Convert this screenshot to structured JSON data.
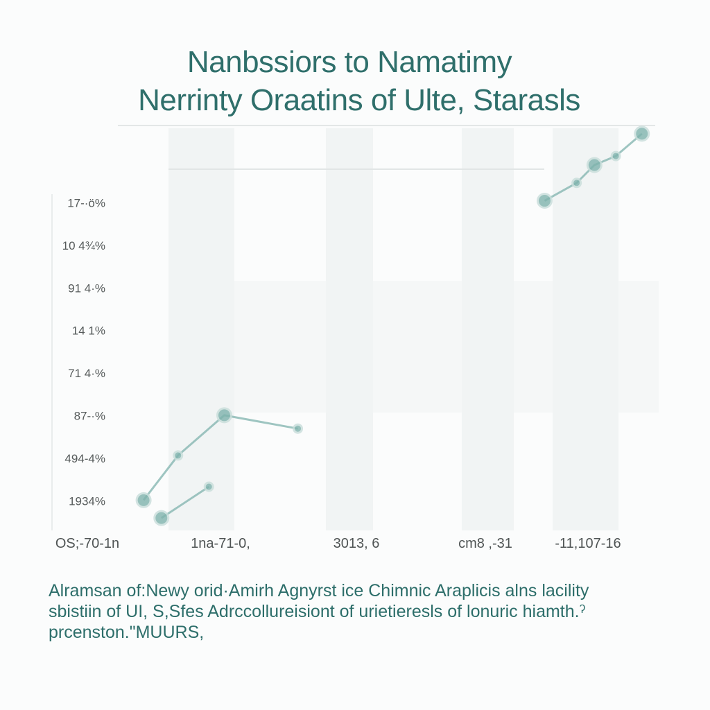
{
  "title_lines": [
    "Nanbssiors to Namatimy",
    "Nerrinty Oraatins of Ulte, Starasls"
  ],
  "caption_lines": [
    "Alramsan of:Newy orid·Amirh Agnyrst ice  Chimnic Araplicis alns lacility",
    "sbistiin of UI, S,Sfes Adrccollureisiont of urietieresls of lonuric hiamth.ˀ",
    "prcenston.ʺMUURS,"
  ],
  "colors": {
    "title": "#2f6f6b",
    "line": "#7fb3ad",
    "marker": "#7fb3ad",
    "axis_text": "#555a5a",
    "band": "#eef1f1"
  },
  "chart_data": {
    "type": "line",
    "ytick_labels": [
      "17-·ö%",
      "10 4¾%",
      "91 4·%",
      "14 1%",
      "71 4·%",
      "87-·%",
      "494-4%",
      "1934%"
    ],
    "xtick_labels": [
      "OS;-70-1n",
      "1na-71-0,",
      "3013, 6",
      "cm8 ,-31",
      "-11,107-16"
    ],
    "series": [
      {
        "points": [
          {
            "x": 0.0,
            "y": 0.6
          },
          {
            "x": 0.29,
            "y": 1.6
          },
          {
            "x": 0.68,
            "y": 2.5
          },
          {
            "x": 1.3,
            "y": 2.2
          }
        ]
      },
      {
        "points": [
          {
            "x": 0.15,
            "y": 0.2
          },
          {
            "x": 0.55,
            "y": 0.9
          }
        ]
      },
      {
        "points": [
          {
            "x": 3.38,
            "y": 7.3
          },
          {
            "x": 3.65,
            "y": 7.7
          },
          {
            "x": 3.8,
            "y": 8.1
          },
          {
            "x": 3.98,
            "y": 8.3
          },
          {
            "x": 4.2,
            "y": 8.8
          }
        ]
      }
    ],
    "xlim": [
      -0.1,
      4.4
    ],
    "ylim": [
      0,
      9
    ],
    "grid": false,
    "legend": "none"
  }
}
